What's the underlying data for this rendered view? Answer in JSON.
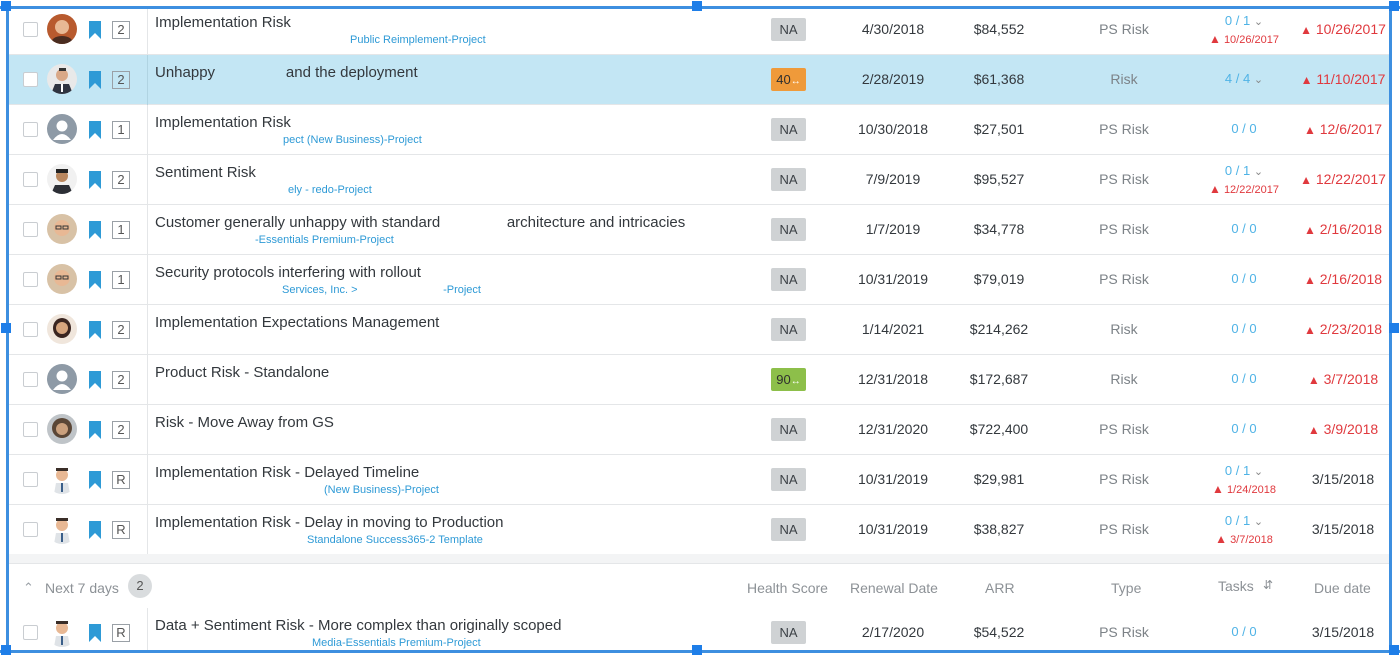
{
  "rows": [
    {
      "title": "Implementation Risk",
      "subtitle": "Public Reimplement-Project",
      "priority": "2",
      "health": "NA",
      "renewal": "4/30/2018",
      "arr": "$84,552",
      "type": "PS Risk",
      "tasks": "0 / 1",
      "task_date": "10/26/2017",
      "due": "10/26/2017",
      "avatar": "woman-redhair"
    },
    {
      "title": "Unhappy                 and the deployment",
      "subtitle": "",
      "priority": "2",
      "health": "40",
      "renewal": "2/28/2019",
      "arr": "$61,368",
      "type": "Risk",
      "tasks": "4 / 4",
      "task_date": "",
      "due": "11/10/2017",
      "avatar": "man-suit"
    },
    {
      "title": "Implementation Risk",
      "subtitle": "pect (New Business)-Project",
      "priority": "1",
      "health": "NA",
      "renewal": "10/30/2018",
      "arr": "$27,501",
      "type": "PS Risk",
      "tasks": "0 / 0",
      "task_date": "",
      "due": "12/6/2017",
      "avatar": "placeholder"
    },
    {
      "title": "Sentiment Risk",
      "subtitle": "ely - redo-Project",
      "priority": "2",
      "health": "NA",
      "renewal": "7/9/2019",
      "arr": "$95,527",
      "type": "PS Risk",
      "tasks": "0 / 1",
      "task_date": "12/22/2017",
      "due": "12/22/2017",
      "avatar": "man-dark"
    },
    {
      "title": "Customer generally unhappy with standard                architecture and intricacies",
      "subtitle": "-Essentials Premium-Project",
      "priority": "1",
      "health": "NA",
      "renewal": "1/7/2019",
      "arr": "$34,778",
      "type": "PS Risk",
      "tasks": "0 / 0",
      "task_date": "",
      "due": "2/16/2018",
      "avatar": "man-glasses"
    },
    {
      "title": "Security protocols interfering with rollout",
      "subtitle": "Services, Inc. >                            -Project",
      "priority": "1",
      "health": "NA",
      "renewal": "10/31/2019",
      "arr": "$79,019",
      "type": "PS Risk",
      "tasks": "0 / 0",
      "task_date": "",
      "due": "2/16/2018",
      "avatar": "man-glasses"
    },
    {
      "title": "Implementation Expectations Management",
      "subtitle": "",
      "priority": "2",
      "health": "NA",
      "renewal": "1/14/2021",
      "arr": "$214,262",
      "type": "Risk",
      "tasks": "0 / 0",
      "task_date": "",
      "due": "2/23/2018",
      "avatar": "woman-dark"
    },
    {
      "title": "Product Risk - Standalone",
      "subtitle": "",
      "priority": "2",
      "health": "90",
      "renewal": "12/31/2018",
      "arr": "$172,687",
      "type": "Risk",
      "tasks": "0 / 0",
      "task_date": "",
      "due": "3/7/2018",
      "avatar": "placeholder"
    },
    {
      "title": "Risk - Move Away from GS",
      "subtitle": "",
      "priority": "2",
      "health": "NA",
      "renewal": "12/31/2020",
      "arr": "$722,400",
      "type": "PS Risk",
      "tasks": "0 / 0",
      "task_date": "",
      "due": "3/9/2018",
      "avatar": "woman-curly"
    },
    {
      "title": "Implementation Risk - Delayed Timeline",
      "subtitle": "(New Business)-Project",
      "priority": "R",
      "health": "NA",
      "renewal": "10/31/2019",
      "arr": "$29,981",
      "type": "PS Risk",
      "tasks": "0 / 1",
      "task_date": "1/24/2018",
      "due": "3/15/2018",
      "avatar": "man-cartoon"
    },
    {
      "title": "Implementation Risk - Delay in moving to Production",
      "subtitle": "Standalone Success365-2 Template",
      "priority": "R",
      "health": "NA",
      "renewal": "10/31/2019",
      "arr": "$38,827",
      "type": "PS Risk",
      "tasks": "0 / 1",
      "task_date": "3/7/2018",
      "due": "3/15/2018",
      "avatar": "man-cartoon"
    }
  ],
  "section": {
    "label": "Next 7 days",
    "count": "2",
    "columns": {
      "health": "Health Score",
      "renewal": "Renewal Date",
      "arr": "ARR",
      "type": "Type",
      "tasks": "Tasks",
      "due": "Due date"
    }
  },
  "next_rows": [
    {
      "title": "Data + Sentiment Risk - More complex than originally scoped",
      "subtitle": "Media-Essentials Premium-Project",
      "priority": "R",
      "health": "NA",
      "renewal": "2/17/2020",
      "arr": "$54,522",
      "type": "PS Risk",
      "tasks": "0 / 0",
      "task_date": "",
      "due": "3/15/2018",
      "avatar": "man-cartoon"
    }
  ],
  "colors": {
    "link": "#2e9ad6",
    "overdue": "#e0393e",
    "selected_row": "#c3e6f4",
    "health_orange": "#ef9a3a",
    "health_green": "#8dbf4a",
    "frame_border": "#3d8fe0"
  }
}
